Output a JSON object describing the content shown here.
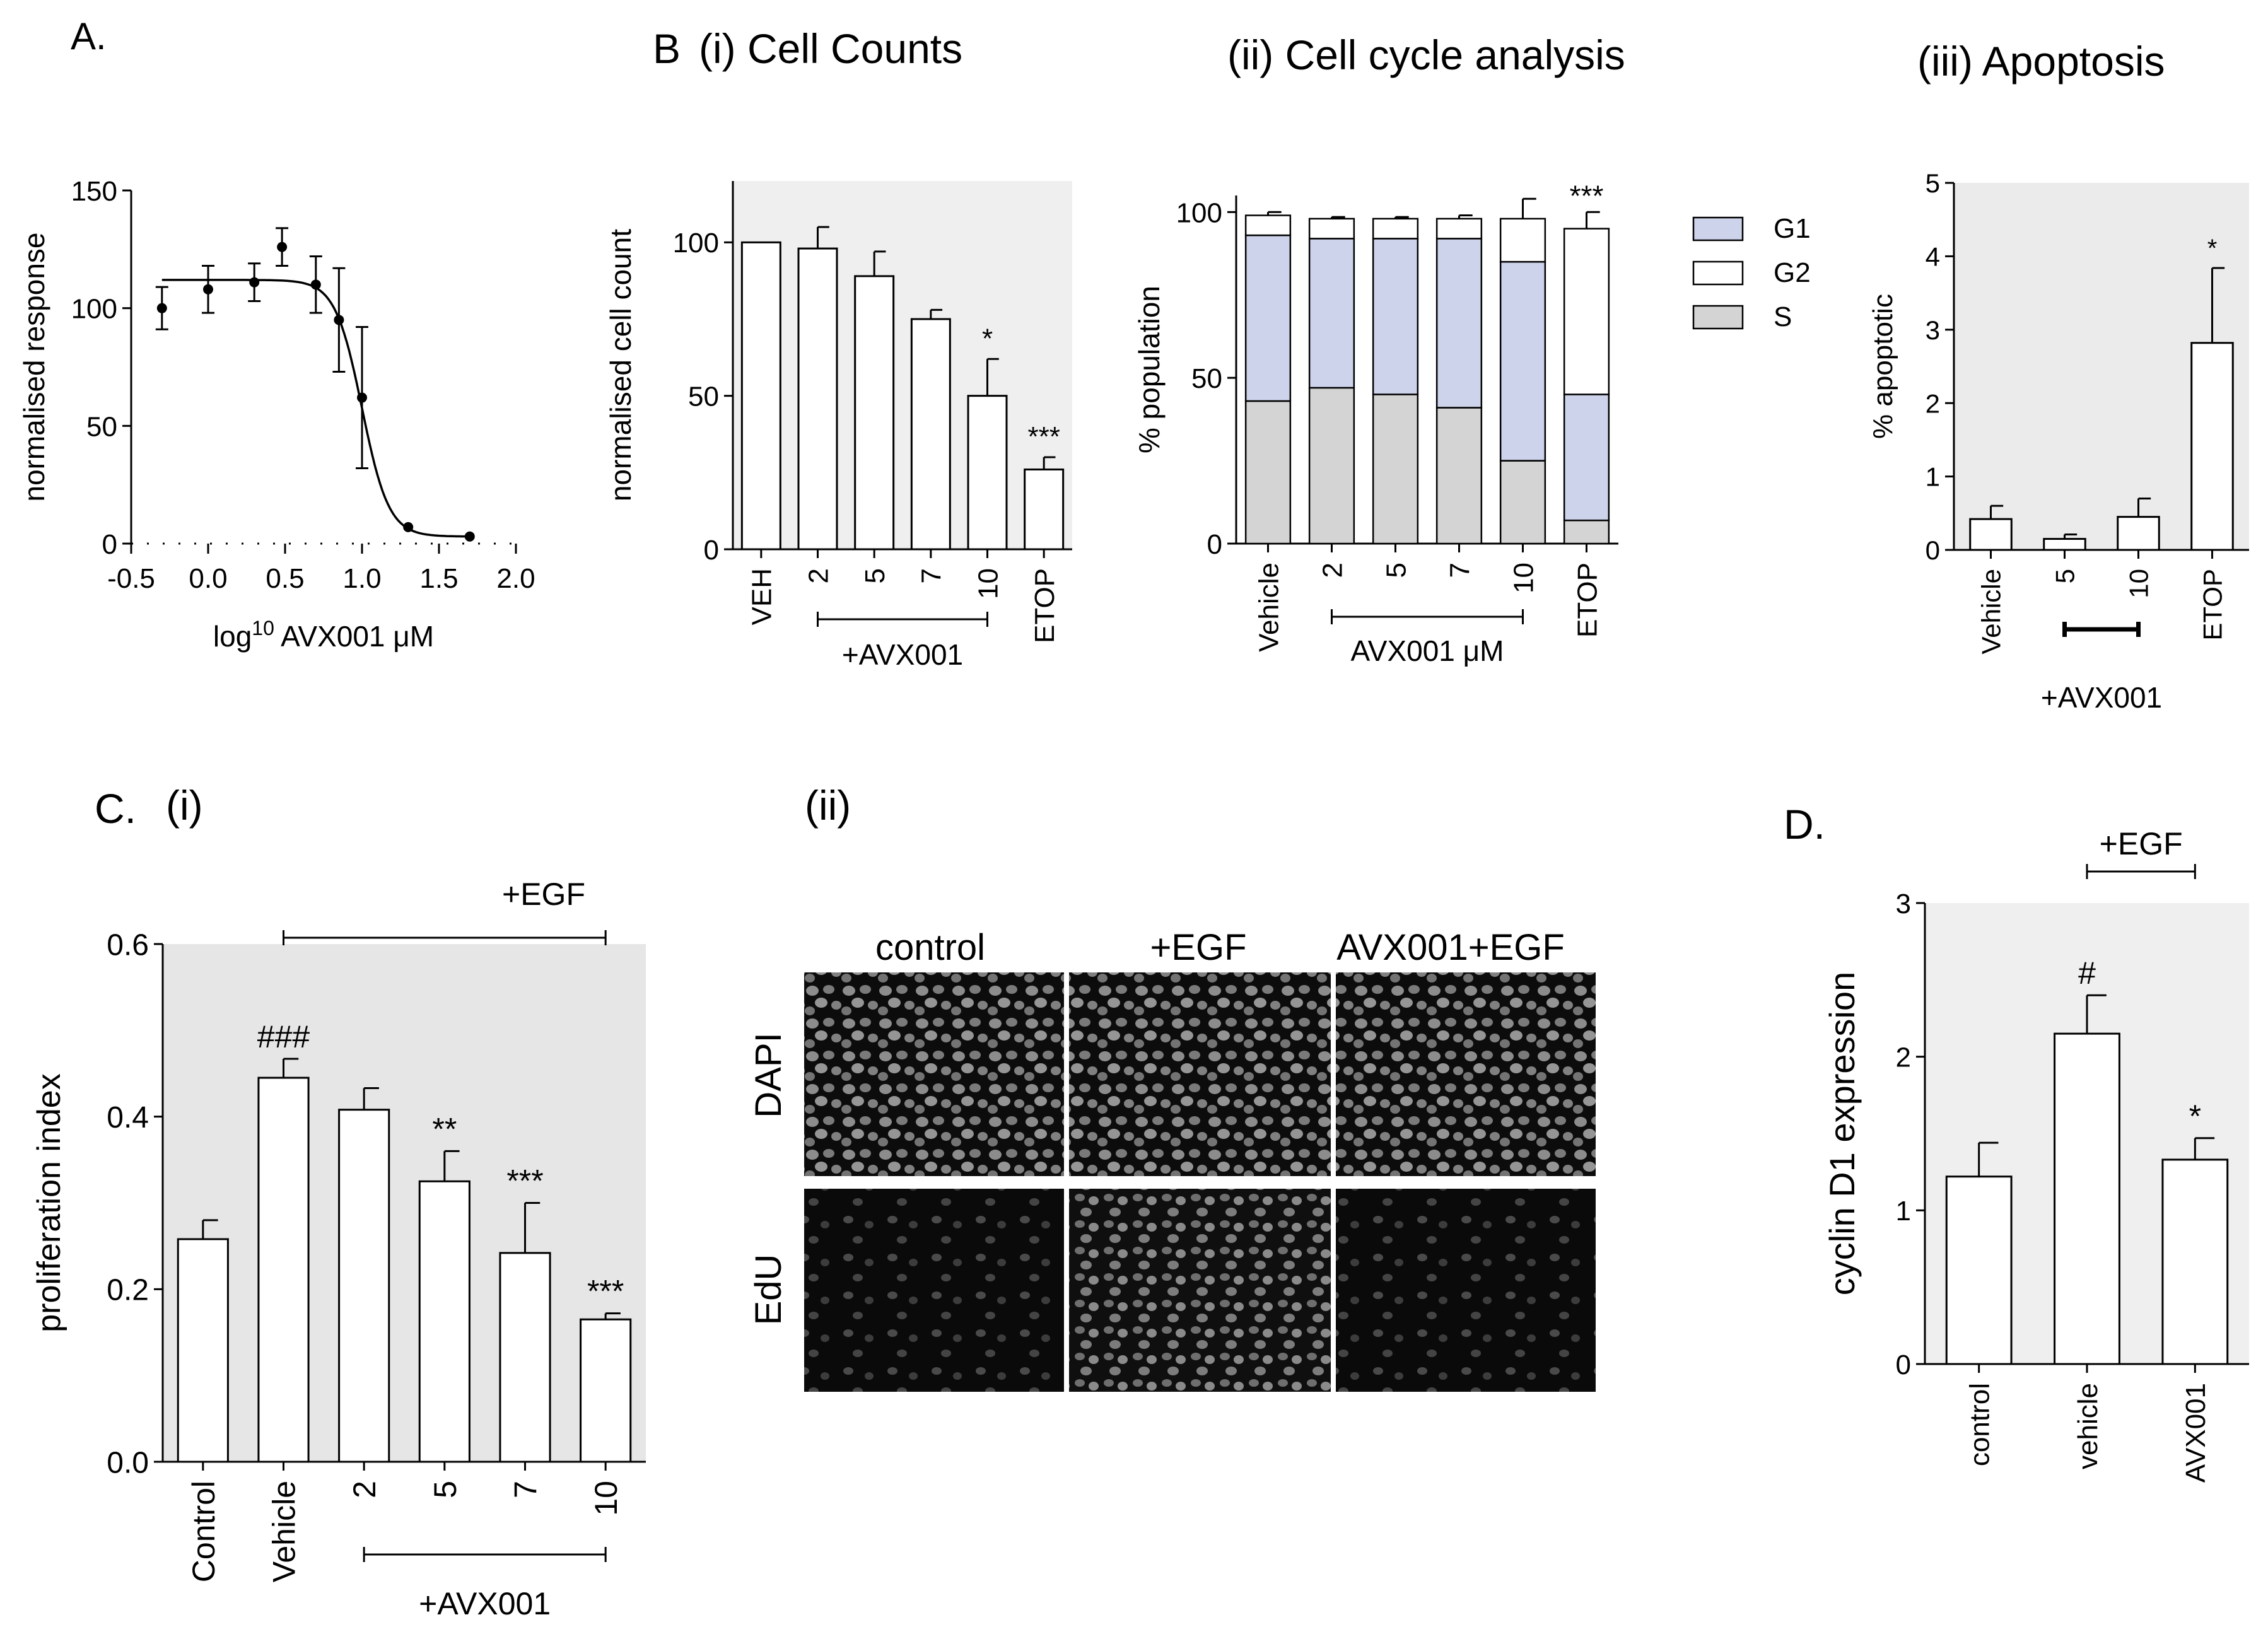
{
  "panel_labels": {
    "A": "A.",
    "B": "B",
    "C": "C.",
    "C_sub": "(i)",
    "C_ii": "(ii)",
    "D": "D."
  },
  "chart_data": [
    {
      "id": "A",
      "type": "scatter",
      "title": "",
      "xlabel": "log",
      "xlabel_sup": "10",
      "xlabel_rest": " AVX001 μM",
      "ylabel": "normalised response",
      "xlim": [
        -0.5,
        2.0
      ],
      "ylim": [
        0,
        150
      ],
      "xticks": [
        "-0.5",
        "0.0",
        "0.5",
        "1.0",
        "1.5",
        "2.0"
      ],
      "xtick_values": [
        -0.5,
        0.0,
        0.5,
        1.0,
        1.5,
        2.0
      ],
      "yticks": [
        "0",
        "50",
        "100",
        "150"
      ],
      "ytick_values": [
        0,
        50,
        100,
        150
      ],
      "x": [
        -0.3,
        0.0,
        0.3,
        0.48,
        0.7,
        0.85,
        1.0,
        1.3,
        1.7
      ],
      "y": [
        100,
        108,
        111,
        126,
        110,
        95,
        62,
        7,
        3
      ],
      "err": [
        9,
        10,
        8,
        8,
        12,
        22,
        30,
        0,
        0
      ],
      "fit": {
        "top": 112,
        "bottom": 3,
        "log_ic50": 1.0,
        "hill": 5
      }
    },
    {
      "id": "B_i",
      "type": "bar",
      "title": "(i) Cell Counts",
      "ylabel": "normalised cell count",
      "ylim": [
        0,
        120
      ],
      "yticks": [
        "0",
        "50",
        "100"
      ],
      "ytick_values": [
        0,
        50,
        100
      ],
      "categories": [
        "VEH",
        "2",
        "5",
        "7",
        "10",
        "ETOP"
      ],
      "values": [
        100,
        98,
        89,
        75,
        50,
        26
      ],
      "err": [
        0,
        7,
        8,
        3,
        12,
        4
      ],
      "annotations": [
        "",
        "",
        "",
        "",
        "*",
        "***"
      ],
      "bracket_label": "+AVX001"
    },
    {
      "id": "B_ii",
      "type": "bar",
      "title": "(ii) Cell cycle analysis",
      "ylabel": "% population",
      "ylim": [
        0,
        105
      ],
      "yticks": [
        "0",
        "50",
        "100"
      ],
      "ytick_values": [
        0,
        50,
        100
      ],
      "categories": [
        "Vehicle",
        "2",
        "5",
        "7",
        "10",
        "ETOP"
      ],
      "series": [
        {
          "name": "S",
          "color": "#d4d4d4",
          "values": [
            43,
            47,
            45,
            41,
            25,
            7
          ],
          "err": [
            1,
            1,
            1.5,
            2,
            9,
            1.5
          ]
        },
        {
          "name": "G1",
          "color": "#cdd3ea",
          "values": [
            50,
            45,
            47,
            51,
            60,
            38
          ],
          "err": [
            1,
            0.8,
            1,
            1,
            4,
            5
          ]
        },
        {
          "name": "G2",
          "color": "#ffffff",
          "values": [
            6,
            6,
            6,
            6,
            13,
            50
          ],
          "err": [
            1,
            0.5,
            0.5,
            1,
            6,
            5
          ]
        }
      ],
      "legend_order": [
        "G1",
        "G2",
        "S"
      ],
      "annotations": {
        "S": [
          "",
          "",
          "",
          "",
          "**",
          "***"
        ],
        "G1": [
          "",
          "",
          "",
          "",
          "",
          "*"
        ],
        "G2": [
          "",
          "",
          "",
          "",
          "",
          "***"
        ]
      },
      "bracket_label": "AVX001 μM"
    },
    {
      "id": "B_iii",
      "type": "bar",
      "title": "(iii) Apoptosis",
      "ylabel": "% apoptotic",
      "ylim": [
        0,
        5
      ],
      "yticks": [
        "0",
        "1",
        "2",
        "3",
        "4",
        "5"
      ],
      "ytick_values": [
        0,
        1,
        2,
        3,
        4,
        5
      ],
      "categories": [
        "Vehicle",
        "5",
        "10",
        "ETOP"
      ],
      "values": [
        0.42,
        0.15,
        0.45,
        2.82
      ],
      "err": [
        0.18,
        0.06,
        0.25,
        1.02
      ],
      "annotations": [
        "",
        "",
        "",
        "*"
      ],
      "bracket_label": "+AVX001"
    },
    {
      "id": "C_i",
      "type": "bar",
      "title": "",
      "ylabel": "proliferation index",
      "ylim": [
        0,
        0.6
      ],
      "yticks": [
        "0.0",
        "0.2",
        "0.4",
        "0.6"
      ],
      "ytick_values": [
        0,
        0.2,
        0.4,
        0.6
      ],
      "categories": [
        "Control",
        "Vehicle",
        "2",
        "5",
        "7",
        "10"
      ],
      "values": [
        0.258,
        0.445,
        0.408,
        0.325,
        0.242,
        0.165
      ],
      "err": [
        0.022,
        0.022,
        0.025,
        0.035,
        0.058,
        0.007
      ],
      "annotations": [
        "",
        "###",
        "",
        "**",
        "***",
        "***"
      ],
      "top_bracket_label": "+EGF",
      "bracket_label": "+AVX001"
    },
    {
      "id": "D",
      "type": "bar",
      "title": "",
      "ylabel": "cyclin D1 expression",
      "ylim": [
        0,
        3
      ],
      "yticks": [
        "0",
        "1",
        "2",
        "3"
      ],
      "ytick_values": [
        0,
        1,
        2,
        3
      ],
      "categories": [
        "control",
        "vehicle",
        "AVX001"
      ],
      "values": [
        1.22,
        2.15,
        1.33
      ],
      "err": [
        0.22,
        0.25,
        0.14
      ],
      "annotations": [
        "",
        "#",
        "*"
      ],
      "top_bracket_label": "+EGF"
    }
  ],
  "microscopy": {
    "columns": [
      "control",
      "+EGF",
      "AVX001+EGF"
    ],
    "rows": [
      "DAPI",
      "EdU"
    ]
  }
}
